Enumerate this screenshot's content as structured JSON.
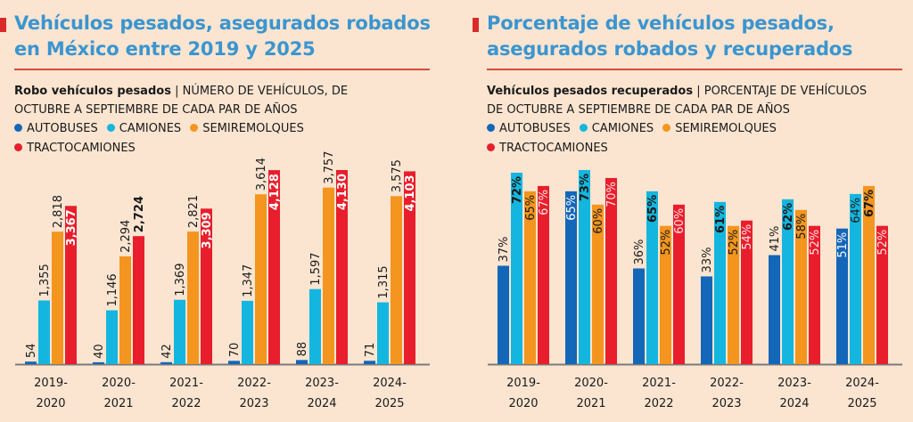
{
  "colors": {
    "autobuses": "#1466b8",
    "camiones": "#14b6df",
    "semiremolques": "#f3951f",
    "tractocamiones": "#e81e2c",
    "title": "#3b95cf",
    "background": "#fbe5d1"
  },
  "chart_data": [
    {
      "type": "bar",
      "title": "Vehículos pesados, asegurados robados en México entre 2019 y 2025",
      "subtitle_bold": "Robo vehículos pesados",
      "subtitle": "| NÚMERO DE VEHÍCULOS, DE OCTUBRE A SEPTIEMBRE DE CADA PAR DE AÑOS",
      "subtitle_line1": "| NÚMERO DE VEHÍCULOS, DE",
      "subtitle_line2": "OCTUBRE A SEPTIEMBRE DE CADA PAR DE AÑOS",
      "categories": [
        [
          "2019-",
          "2020"
        ],
        [
          "2020-",
          "2021"
        ],
        [
          "2021-",
          "2022"
        ],
        [
          "2022-",
          "2023"
        ],
        [
          "2023-",
          "2024"
        ],
        [
          "2024-",
          "2025"
        ]
      ],
      "legend": [
        "AUTOBUSES",
        "CAMIONES",
        "SEMIREMOLQUES",
        "TRACTOCAMIONES"
      ],
      "legend_placement": "top",
      "grid": false,
      "ylim": [
        0,
        4130
      ],
      "series": [
        {
          "name": "AUTOBUSES",
          "values": [
            54,
            40,
            42,
            70,
            88,
            71
          ],
          "labels": [
            "54",
            "40",
            "42",
            "70",
            "88",
            "71"
          ],
          "bold": [
            false,
            false,
            false,
            false,
            false,
            false
          ]
        },
        {
          "name": "CAMIONES",
          "values": [
            1355,
            1146,
            1369,
            1347,
            1597,
            1315
          ],
          "labels": [
            "1,355",
            "1,146",
            "1,369",
            "1,347",
            "1,597",
            "1,315"
          ],
          "bold": [
            false,
            false,
            false,
            false,
            false,
            false
          ]
        },
        {
          "name": "SEMIREMOLQUES",
          "values": [
            2818,
            2294,
            2821,
            3614,
            3757,
            3575
          ],
          "labels": [
            "2,818",
            "2,294",
            "2,821",
            "3,614",
            "3,757",
            "3,575"
          ],
          "bold": [
            false,
            false,
            false,
            false,
            false,
            false
          ]
        },
        {
          "name": "TRACTOCAMIONES",
          "values": [
            3367,
            2724,
            3309,
            4128,
            4130,
            4103
          ],
          "labels": [
            "3,367",
            "2,724",
            "3,309",
            "4,128",
            "4,130",
            "4,103"
          ],
          "bold": [
            true,
            true,
            true,
            true,
            true,
            true
          ]
        }
      ]
    },
    {
      "type": "bar",
      "title": "Porcentaje de vehículos pesados, asegurados robados y recuperados",
      "subtitle_bold": "Vehículos pesados recuperados",
      "subtitle_line1": "| PORCENTAJE DE VEHÍCULOS",
      "subtitle_line2": "DE OCTUBRE A SEPTIEMBRE DE CADA PAR DE AÑOS",
      "categories": [
        [
          "2019-",
          "2020"
        ],
        [
          "2020-",
          "2021"
        ],
        [
          "2021-",
          "2022"
        ],
        [
          "2022-",
          "2023"
        ],
        [
          "2023-",
          "2024"
        ],
        [
          "2024-",
          "2025"
        ]
      ],
      "legend": [
        "AUTOBUSES",
        "CAMIONES",
        "SEMIREMOLQUES",
        "TRACTOCAMIONES"
      ],
      "legend_placement": "top",
      "grid": false,
      "unit": "%",
      "ylim": [
        0,
        73
      ],
      "series": [
        {
          "name": "AUTOBUSES",
          "values": [
            37,
            65,
            36,
            33,
            41,
            51
          ],
          "labels": [
            "37%",
            "65%",
            "36%",
            "33%",
            "41%",
            "51%"
          ],
          "bold": [
            false,
            false,
            false,
            false,
            false,
            false
          ]
        },
        {
          "name": "CAMIONES",
          "values": [
            72,
            73,
            65,
            61,
            62,
            64
          ],
          "labels": [
            "72%",
            "73%",
            "65%",
            "61%",
            "62%",
            "64%"
          ],
          "bold": [
            true,
            true,
            true,
            true,
            true,
            false
          ]
        },
        {
          "name": "SEMIREMOLQUES",
          "values": [
            65,
            60,
            52,
            52,
            58,
            67
          ],
          "labels": [
            "65%",
            "60%",
            "52%",
            "52%",
            "58%",
            "67%"
          ],
          "bold": [
            false,
            false,
            false,
            false,
            false,
            true
          ]
        },
        {
          "name": "TRACTOCAMIONES",
          "values": [
            67,
            70,
            60,
            54,
            52,
            52
          ],
          "labels": [
            "67%",
            "70%",
            "60%",
            "54%",
            "52%",
            "52%"
          ],
          "bold": [
            false,
            false,
            false,
            false,
            false,
            false
          ]
        }
      ]
    }
  ]
}
